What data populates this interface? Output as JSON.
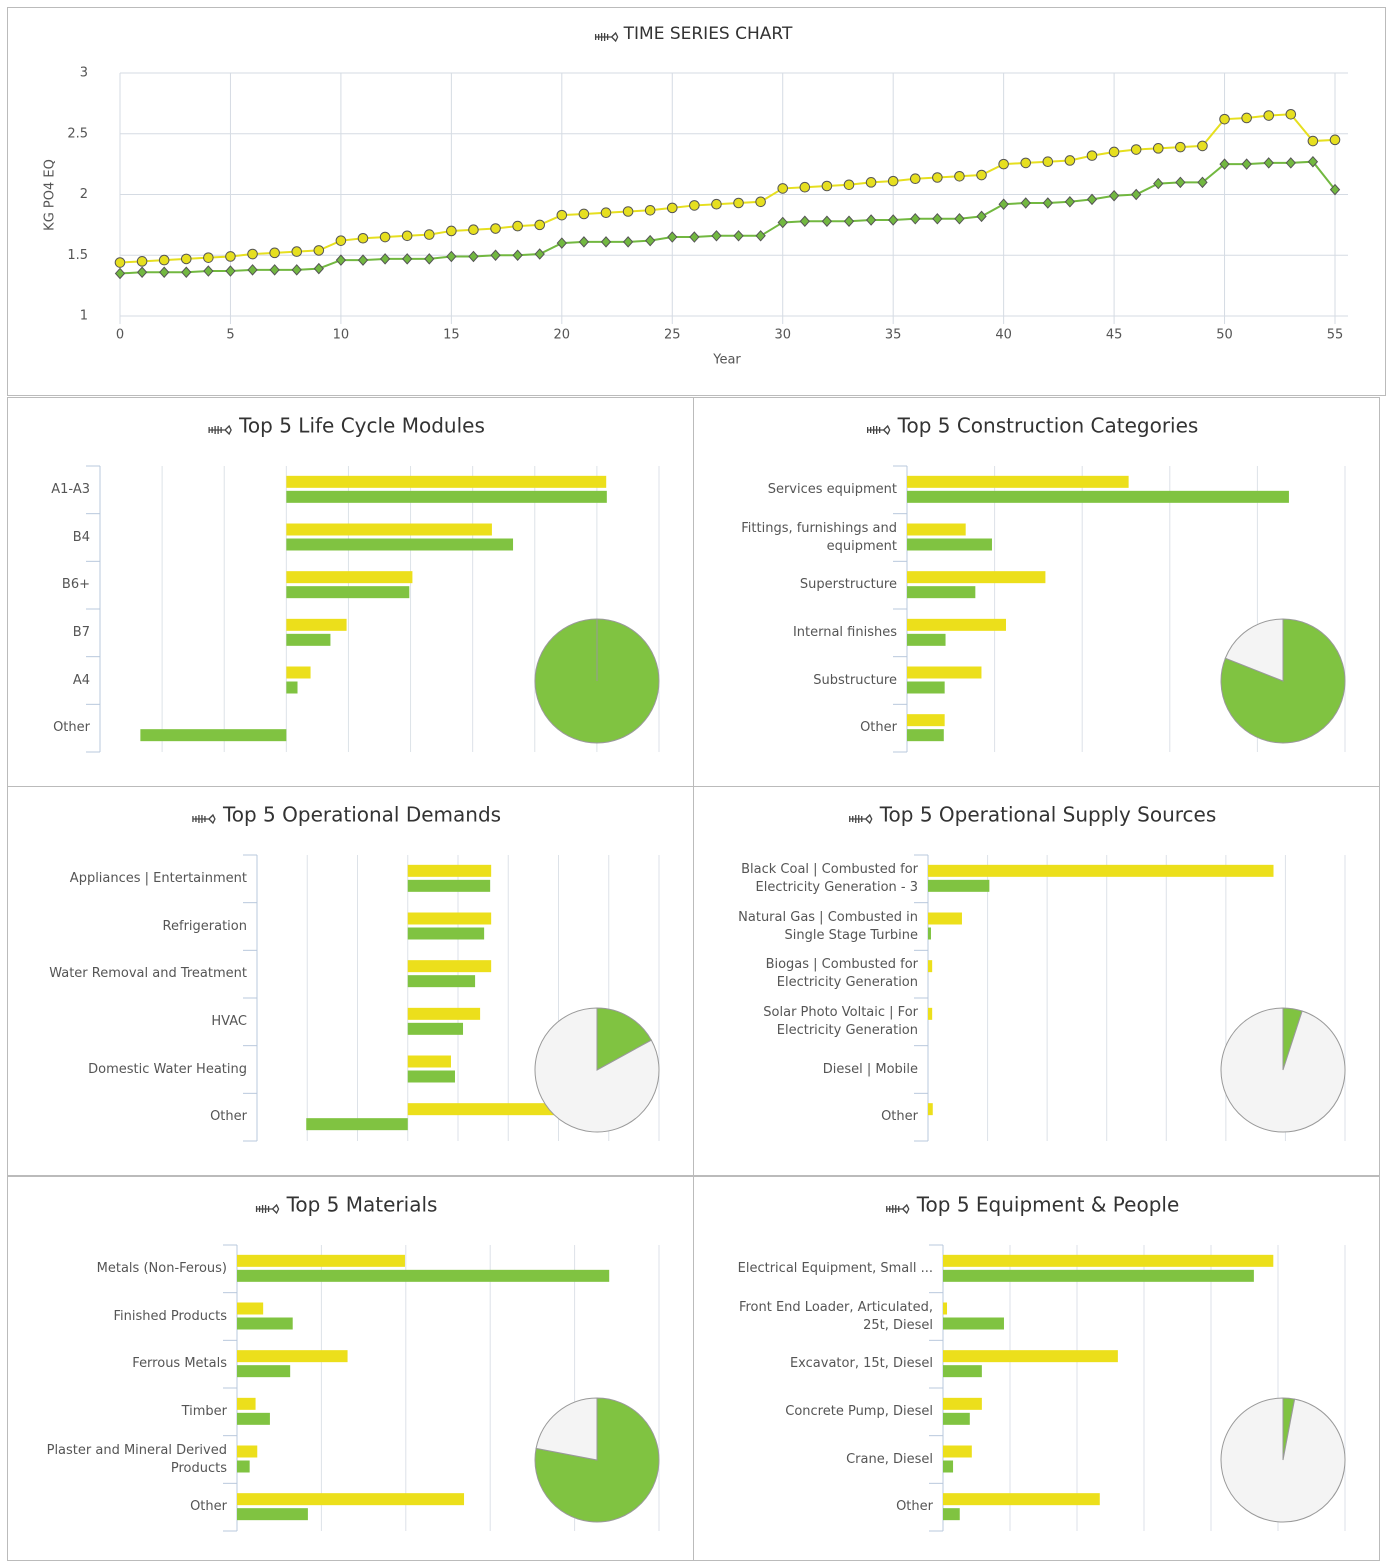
{
  "chart_data": [
    {
      "type": "line",
      "title": "TIME SERIES CHART",
      "x_label": "Year",
      "y_label": "KG PO4 EQ",
      "x": [
        0,
        1,
        2,
        3,
        4,
        5,
        6,
        7,
        8,
        9,
        10,
        11,
        12,
        13,
        14,
        15,
        16,
        17,
        18,
        19,
        20,
        21,
        22,
        23,
        24,
        25,
        26,
        27,
        28,
        29,
        30,
        31,
        32,
        33,
        34,
        35,
        36,
        37,
        38,
        39,
        40,
        41,
        42,
        43,
        44,
        45,
        46,
        47,
        48,
        49,
        50,
        51,
        52,
        53,
        54,
        55
      ],
      "series": [
        {
          "color": "#e6df1f",
          "marker": "circle",
          "values": [
            1.44,
            1.45,
            1.46,
            1.47,
            1.48,
            1.49,
            1.51,
            1.52,
            1.53,
            1.54,
            1.62,
            1.64,
            1.65,
            1.66,
            1.67,
            1.7,
            1.71,
            1.72,
            1.74,
            1.75,
            1.83,
            1.84,
            1.85,
            1.86,
            1.87,
            1.89,
            1.91,
            1.92,
            1.93,
            1.94,
            2.05,
            2.06,
            2.07,
            2.08,
            2.1,
            2.11,
            2.13,
            2.14,
            2.15,
            2.16,
            2.25,
            2.26,
            2.27,
            2.28,
            2.32,
            2.35,
            2.37,
            2.38,
            2.39,
            2.4,
            2.62,
            2.63,
            2.65,
            2.66,
            2.44,
            2.45
          ]
        },
        {
          "color": "#72b840",
          "marker": "diamond",
          "values": [
            1.35,
            1.36,
            1.36,
            1.36,
            1.37,
            1.37,
            1.38,
            1.38,
            1.38,
            1.39,
            1.46,
            1.46,
            1.47,
            1.47,
            1.47,
            1.49,
            1.49,
            1.5,
            1.5,
            1.51,
            1.6,
            1.61,
            1.61,
            1.61,
            1.62,
            1.65,
            1.65,
            1.66,
            1.66,
            1.66,
            1.77,
            1.78,
            1.78,
            1.78,
            1.79,
            1.79,
            1.8,
            1.8,
            1.8,
            1.82,
            1.92,
            1.93,
            1.93,
            1.94,
            1.96,
            1.99,
            2.0,
            2.09,
            2.1,
            2.1,
            2.25,
            2.25,
            2.26,
            2.26,
            2.27,
            2.04
          ]
        }
      ],
      "xlim": [
        0,
        55
      ],
      "xticks": [
        0,
        5,
        10,
        15,
        20,
        25,
        30,
        35,
        40,
        45,
        50,
        55
      ],
      "ylim": [
        1,
        3
      ],
      "yticks": [
        1,
        1.5,
        2,
        2.5,
        3
      ],
      "grid": true
    },
    {
      "type": "bar",
      "orientation": "horizontal",
      "title": "Top 5 Life Cycle Modules",
      "categories": [
        "A1-A3",
        "B4",
        "B6+",
        "B7",
        "A4",
        "Other"
      ],
      "series": [
        {
          "color": "#ecdf1b",
          "values": [
            5.15,
            3.31,
            2.03,
            0.97,
            0.39,
            0
          ]
        },
        {
          "color": "#80c341",
          "values": [
            5.16,
            3.65,
            1.98,
            0.71,
            0.18,
            -2.35
          ]
        }
      ],
      "xlim": [
        -3,
        6
      ],
      "xticks": [
        -3,
        -2,
        -1,
        0,
        1,
        2,
        3,
        4,
        5,
        6
      ],
      "pie": {
        "values": [
          100,
          0
        ],
        "colors": [
          "#80c341",
          "#f4f4f4"
        ]
      }
    },
    {
      "type": "bar",
      "orientation": "horizontal",
      "title": "Top 5 Construction Categories",
      "categories": [
        "Services equipment",
        "Fittings, furnishings and\nequipment",
        "Superstructure",
        "Internal finishes",
        "Substructure",
        "Other"
      ],
      "series": [
        {
          "color": "#ecdf1b",
          "values": [
            2.53,
            0.67,
            1.58,
            1.13,
            0.85,
            0.43
          ]
        },
        {
          "color": "#80c341",
          "values": [
            4.36,
            0.97,
            0.78,
            0.44,
            0.43,
            0.42
          ]
        }
      ],
      "xlim": [
        0,
        5
      ],
      "xticks": [
        0,
        1,
        2,
        3,
        4,
        5
      ],
      "pie": {
        "values": [
          81,
          19
        ],
        "colors": [
          "#80c341",
          "#f4f4f4"
        ]
      }
    },
    {
      "type": "bar",
      "orientation": "horizontal",
      "title": "Top 5 Operational Demands",
      "categories": [
        "Appliances | Entertainment",
        "Refrigeration",
        "Water Removal and Treatment",
        "HVAC",
        "Domestic Water Heating",
        "Other"
      ],
      "series": [
        {
          "color": "#ecdf1b",
          "values": [
            1.66,
            1.66,
            1.66,
            1.44,
            0.86,
            3.44
          ]
        },
        {
          "color": "#80c341",
          "values": [
            1.64,
            1.52,
            1.34,
            1.1,
            0.94,
            -2.02
          ]
        }
      ],
      "xlim": [
        -3,
        5
      ],
      "xticks": [
        -3,
        -2,
        -1,
        0,
        1,
        2,
        3,
        4,
        5
      ],
      "pie": {
        "values": [
          17,
          83
        ],
        "colors": [
          "#80c341",
          "#f4f4f4"
        ]
      }
    },
    {
      "type": "bar",
      "orientation": "horizontal",
      "title": "Top 5 Operational Supply Sources",
      "categories": [
        "Black Coal | Combusted for\nElectricity Generation - 3",
        "Natural Gas | Combusted in\nSingle Stage Turbine",
        "Biogas | Combusted for\nElectricity Generation",
        "Solar Photo Voltaic | For\nElectricity Generation",
        "Diesel | Mobile",
        "Other"
      ],
      "series": [
        {
          "color": "#ecdf1b",
          "values": [
            5.8,
            0.57,
            0.07,
            0.07,
            0,
            0.08
          ]
        },
        {
          "color": "#80c341",
          "values": [
            1.03,
            0.05,
            0,
            0,
            0,
            0
          ]
        }
      ],
      "xlim": [
        0,
        7
      ],
      "xticks": [
        0,
        1,
        2,
        3,
        4,
        5,
        6,
        7
      ],
      "pie": {
        "values": [
          5,
          95
        ],
        "colors": [
          "#80c341",
          "#f4f4f4"
        ]
      }
    },
    {
      "type": "bar",
      "orientation": "horizontal",
      "title": "Top 5 Materials",
      "categories": [
        "Metals (Non-Ferous)",
        "Finished Products",
        "Ferrous Metals",
        "Timber",
        "Plaster and Mineral Derived\nProducts",
        "Other"
      ],
      "series": [
        {
          "color": "#ecdf1b",
          "values": [
            1.99,
            0.31,
            1.31,
            0.22,
            0.24,
            2.69
          ]
        },
        {
          "color": "#80c341",
          "values": [
            4.41,
            0.66,
            0.63,
            0.39,
            0.15,
            0.84
          ]
        }
      ],
      "xlim": [
        0,
        5
      ],
      "xticks": [
        0,
        1,
        2,
        3,
        4,
        5
      ],
      "pie": {
        "values": [
          78,
          22
        ],
        "colors": [
          "#80c341",
          "#f4f4f4"
        ]
      }
    },
    {
      "type": "bar",
      "orientation": "horizontal",
      "title": "Top 5 Equipment & People",
      "categories": [
        "Electrical Equipment, Small ...",
        "Front End Loader, Articulated,\n25t, Diesel",
        "Excavator, 15t, Diesel",
        "Concrete Pump, Diesel",
        "Crane, Diesel",
        "Other"
      ],
      "series": [
        {
          "color": "#ecdf1b",
          "values": [
            4.93,
            0.06,
            2.61,
            0.58,
            0.43,
            2.34
          ]
        },
        {
          "color": "#80c341",
          "values": [
            4.64,
            0.91,
            0.58,
            0.4,
            0.15,
            0.25
          ]
        }
      ],
      "xlim": [
        0,
        6
      ],
      "xticks": [
        0,
        1,
        2,
        3,
        4,
        5,
        6
      ],
      "pie": {
        "values": [
          3,
          97
        ],
        "colors": [
          "#80c341",
          "#f4f4f4"
        ]
      }
    }
  ]
}
